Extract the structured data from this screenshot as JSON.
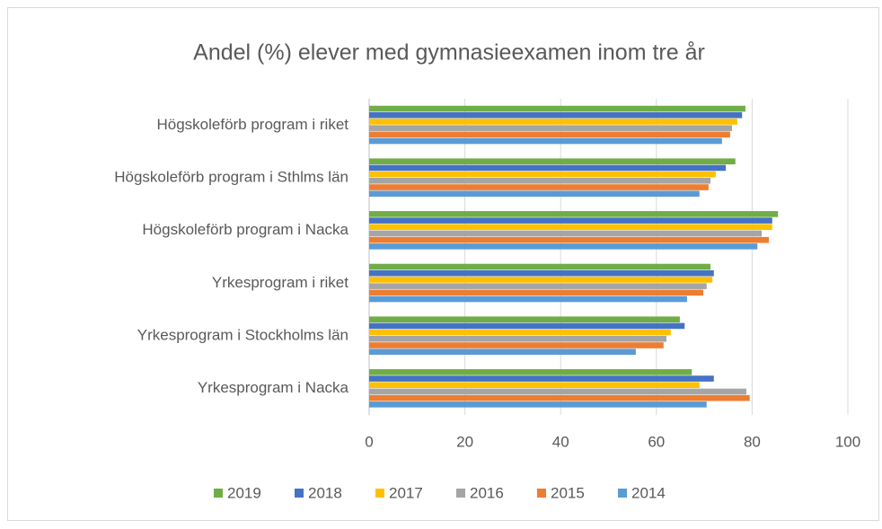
{
  "chart_data": {
    "type": "hbar",
    "title": "Andel (%) elever med gymnasieexamen inom tre år",
    "categories": [
      "Högskoleförb program i riket",
      "Högskoleförb program i Sthlms län",
      "Högskoleförb program i Nacka",
      "Yrkesprogram i riket",
      "Yrkesprogram i Stockholms län",
      "Yrkesprogram i Nacka"
    ],
    "series": [
      {
        "name": "2019",
        "color": "#70ad47",
        "values": [
          78.6,
          76.5,
          85.4,
          71.3,
          64.9,
          67.4
        ]
      },
      {
        "name": "2018",
        "color": "#4472c4",
        "values": [
          77.9,
          74.5,
          84.2,
          72.0,
          65.9,
          72.0
        ]
      },
      {
        "name": "2017",
        "color": "#ffc000",
        "values": [
          76.9,
          72.4,
          84.2,
          71.7,
          63.0,
          69.0
        ]
      },
      {
        "name": "2016",
        "color": "#a5a5a5",
        "values": [
          75.8,
          71.3,
          82.0,
          70.5,
          62.1,
          78.8
        ]
      },
      {
        "name": "2015",
        "color": "#ed7d31",
        "values": [
          75.4,
          70.9,
          83.5,
          69.8,
          61.5,
          79.5
        ]
      },
      {
        "name": "2014",
        "color": "#5b9bd5",
        "values": [
          73.7,
          69.0,
          81.1,
          66.4,
          55.7,
          70.5
        ]
      }
    ],
    "xlim": [
      0,
      100
    ],
    "xticks": [
      0,
      20,
      40,
      60,
      80,
      100
    ],
    "grid": true,
    "legend": "bottom"
  }
}
